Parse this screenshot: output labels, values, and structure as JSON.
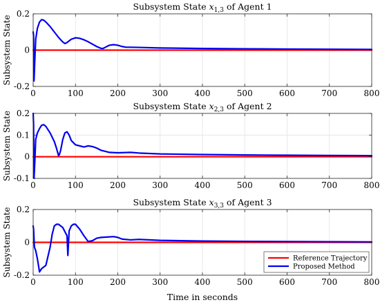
{
  "chart_data": [
    {
      "type": "line",
      "title": "Subsystem State x1,3 of Agent 1",
      "title_math": {
        "prefix": "Subsystem State ",
        "var": "x",
        "sub": "1,3",
        "suffix": " of Agent 1"
      },
      "ylabel": "Subsystem State",
      "xlabel": "",
      "xlim": [
        0,
        800
      ],
      "ylim": [
        -0.2,
        0.2
      ],
      "xticks": [
        0,
        100,
        200,
        300,
        400,
        500,
        600,
        700,
        800
      ],
      "yticks": [
        -0.2,
        0,
        0.2
      ],
      "ytick_labels": [
        "-0.2",
        "0",
        "0.2"
      ],
      "grid": true,
      "series": [
        {
          "name": "Reference Trajectory",
          "color": "#ff0000",
          "x": [
            0,
            800
          ],
          "y": [
            0,
            0
          ]
        },
        {
          "name": "Proposed Method",
          "color": "#0000ee",
          "x": [
            0,
            1,
            2,
            4,
            6,
            10,
            15,
            20,
            25,
            30,
            40,
            50,
            60,
            70,
            75,
            80,
            90,
            100,
            110,
            120,
            130,
            140,
            150,
            160,
            165,
            170,
            180,
            190,
            200,
            210,
            220,
            230,
            250,
            300,
            400,
            500,
            600,
            700,
            800
          ],
          "y": [
            0.1,
            0.08,
            -0.17,
            -0.05,
            0.06,
            0.12,
            0.155,
            0.168,
            0.165,
            0.155,
            0.13,
            0.1,
            0.07,
            0.045,
            0.036,
            0.042,
            0.06,
            0.068,
            0.065,
            0.057,
            0.046,
            0.033,
            0.02,
            0.01,
            0.009,
            0.015,
            0.027,
            0.03,
            0.027,
            0.02,
            0.016,
            0.016,
            0.015,
            0.012,
            0.009,
            0.007,
            0.006,
            0.005,
            0.004
          ]
        }
      ]
    },
    {
      "type": "line",
      "title": "Subsystem State x2,3 of Agent 2",
      "title_math": {
        "prefix": "Subsystem State ",
        "var": "x",
        "sub": "2,3",
        "suffix": " of Agent 2"
      },
      "ylabel": "Subsystem State",
      "xlabel": "",
      "xlim": [
        0,
        800
      ],
      "ylim": [
        -0.1,
        0.2
      ],
      "xticks": [
        0,
        100,
        200,
        300,
        400,
        500,
        600,
        700,
        800
      ],
      "yticks": [
        -0.1,
        0,
        0.1,
        0.2
      ],
      "ytick_labels": [
        "-0.1",
        "0",
        "0.1",
        "0.2"
      ],
      "grid": true,
      "series": [
        {
          "name": "Reference Trajectory",
          "color": "#ff0000",
          "x": [
            0,
            800
          ],
          "y": [
            0,
            0
          ]
        },
        {
          "name": "Proposed Method",
          "color": "#0000ee",
          "x": [
            0,
            1,
            2,
            4,
            6,
            10,
            15,
            20,
            25,
            30,
            40,
            50,
            55,
            60,
            62,
            65,
            70,
            75,
            80,
            85,
            90,
            100,
            110,
            120,
            130,
            140,
            150,
            160,
            170,
            180,
            200,
            230,
            250,
            300,
            400,
            500,
            600,
            700,
            800
          ],
          "y": [
            0.2,
            0.15,
            -0.1,
            -0.02,
            0.08,
            0.11,
            0.13,
            0.145,
            0.148,
            0.14,
            0.11,
            0.07,
            0.04,
            0.005,
            0.01,
            0.03,
            0.08,
            0.11,
            0.115,
            0.1,
            0.075,
            0.055,
            0.05,
            0.045,
            0.05,
            0.047,
            0.04,
            0.03,
            0.025,
            0.02,
            0.018,
            0.02,
            0.017,
            0.013,
            0.01,
            0.008,
            0.007,
            0.006,
            0.005
          ]
        }
      ]
    },
    {
      "type": "line",
      "title": "Subsystem State x3,3 of Agent 3",
      "title_math": {
        "prefix": "Subsystem State ",
        "var": "x",
        "sub": "3,3",
        "suffix": " of Agent 3"
      },
      "ylabel": "Subsystem State",
      "xlabel": "Time in seconds",
      "xlim": [
        0,
        800
      ],
      "ylim": [
        -0.2,
        0.2
      ],
      "xticks": [
        0,
        100,
        200,
        300,
        400,
        500,
        600,
        700,
        800
      ],
      "yticks": [
        -0.2,
        0,
        0.2
      ],
      "ytick_labels": [
        "-0.2",
        "0",
        "0.2"
      ],
      "grid": true,
      "legend": {
        "position": "bottom-right",
        "entries": [
          "Reference Trajectory",
          "Proposed Method"
        ]
      },
      "series": [
        {
          "name": "Reference Trajectory",
          "color": "#ff0000",
          "x": [
            0,
            800
          ],
          "y": [
            0,
            0
          ]
        },
        {
          "name": "Proposed Method",
          "color": "#0000ee",
          "x": [
            0,
            1,
            3,
            6,
            10,
            15,
            20,
            30,
            40,
            45,
            50,
            55,
            60,
            70,
            80,
            82,
            85,
            90,
            95,
            100,
            110,
            120,
            130,
            140,
            150,
            160,
            180,
            190,
            200,
            210,
            230,
            250,
            300,
            400,
            500,
            600,
            700,
            800
          ],
          "y": [
            0.1,
            0.08,
            -0.03,
            -0.05,
            -0.1,
            -0.18,
            -0.16,
            -0.14,
            -0.03,
            0.05,
            0.1,
            0.11,
            0.11,
            0.09,
            0.04,
            -0.08,
            0.07,
            0.1,
            0.11,
            0.11,
            0.08,
            0.04,
            0.005,
            0.01,
            0.025,
            0.03,
            0.033,
            0.035,
            0.03,
            0.02,
            0.015,
            0.018,
            0.012,
            0.008,
            0.006,
            0.005,
            0.004,
            0.003
          ]
        }
      ]
    }
  ]
}
